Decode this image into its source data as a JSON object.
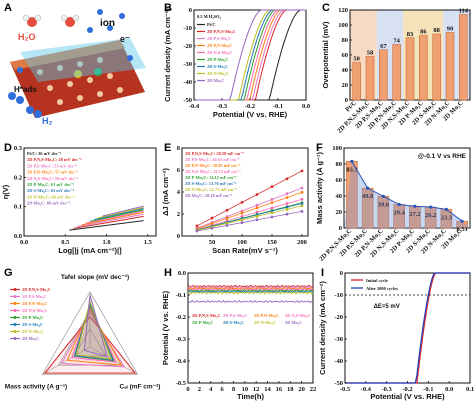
{
  "labels": {
    "A": "A",
    "B": "B",
    "C": "C",
    "D": "D",
    "E": "E",
    "F": "F",
    "G": "G",
    "H": "H",
    "I": "I"
  },
  "schematic": {
    "h2o": "H₂O",
    "ion": "ion",
    "electron": "e⁻",
    "hads": "H*ads",
    "h2": "H₂"
  },
  "chart_data": [
    {
      "panel": "B",
      "type": "line",
      "annotation": "0.5 M H₂SO₄",
      "xlabel": "Potential (V vs. RHE)",
      "ylabel": "Current density (mA cm⁻²)",
      "xlim": [
        -0.4,
        0.0
      ],
      "ylim": [
        -50,
        0
      ],
      "xticks": [
        "-0.4",
        "-0.3",
        "-0.2",
        "-0.1",
        "0.0"
      ],
      "yticks": [
        "0",
        "-10",
        "-20",
        "-30",
        "-40",
        "-50"
      ],
      "series": [
        {
          "name": "Pt/C",
          "color": "#222222",
          "onset": -0.02
        },
        {
          "name": "2D P,N,S-Mo₂C",
          "color": "#d62728",
          "onset": -0.07
        },
        {
          "name": "2D P,S-Mo₂C",
          "color": "#e377c2",
          "onset": -0.08
        },
        {
          "name": "2D P,N-Mo₂C",
          "color": "#ff7f0e",
          "onset": -0.09
        },
        {
          "name": "2D N,S-Mo₂C",
          "color": "#ff69b4",
          "onset": -0.1
        },
        {
          "name": "2D P-Mo₂C",
          "color": "#2ca02c",
          "onset": -0.11
        },
        {
          "name": "2D S-Mo₂C",
          "color": "#1f77b4",
          "onset": -0.12
        },
        {
          "name": "2D N-Mo₂C",
          "color": "#bcbd22",
          "onset": -0.13
        },
        {
          "name": "2D Mo₂C",
          "color": "#9467bd",
          "onset": -0.16
        }
      ]
    },
    {
      "panel": "C",
      "type": "bar",
      "ylabel": "Overpotential (mV)",
      "ylim": [
        0,
        120
      ],
      "yticks": [
        "0",
        "20",
        "40",
        "60",
        "80",
        "100",
        "120"
      ],
      "categories": [
        "Pt/C",
        "2D P,N,S-Mo₂C",
        "2D P,S-Mo₂C",
        "2D P,N-Mo₂C",
        "2D N,S-Mo₂C",
        "2D P-Mo₂C",
        "2D S-Mo₂C",
        "2D N-Mo₂C",
        "2D Mo₂C"
      ],
      "values": [
        50,
        58,
        67,
        74,
        83,
        86,
        88,
        90,
        114
      ],
      "value_labels": [
        "50",
        "58",
        "67",
        "74",
        "83",
        "86",
        "88",
        "90",
        "114"
      ]
    },
    {
      "panel": "D",
      "type": "line",
      "xlabel": "Log[|j (mA cm⁻²)|]",
      "ylabel": "η(V)",
      "xlim": [
        0.0,
        1.6
      ],
      "ylim": [
        0.0,
        0.3
      ],
      "xticks": [
        "0.0",
        "0.5",
        "1.0",
        "1.5"
      ],
      "yticks": [
        "0.0",
        "0.1",
        "0.2",
        "0.3"
      ],
      "series": [
        {
          "name": "Pt/C: 36 mV dec⁻¹",
          "color": "#222222",
          "slope": 36
        },
        {
          "name": "2D P,N,S-Mo₂C: 48 mV dec⁻¹",
          "color": "#d62728",
          "slope": 48
        },
        {
          "name": "2D P,S-Mo₂C: 53 mV dec⁻¹",
          "color": "#e377c2",
          "slope": 53
        },
        {
          "name": "2D P,N-Mo₂C: 57 mV dec⁻¹",
          "color": "#ff7f0e",
          "slope": 57
        },
        {
          "name": "2D N,S-Mo₂C: 59 mV dec⁻¹",
          "color": "#ff69b4",
          "slope": 59
        },
        {
          "name": "2D P-Mo₂C: 61 mV dec⁻¹",
          "color": "#2ca02c",
          "slope": 61
        },
        {
          "name": "2D S-Mo₂C: 63 mV dec⁻¹",
          "color": "#1f77b4",
          "slope": 63
        },
        {
          "name": "2D N-Mo₂C: 64 mV dec⁻¹",
          "color": "#bcbd22",
          "slope": 64
        },
        {
          "name": "2D Mo₂C: 68 mV dec⁻¹",
          "color": "#9467bd",
          "slope": 68
        }
      ]
    },
    {
      "panel": "E",
      "type": "scatter",
      "xlabel": "Scan Rate(mV s⁻¹)",
      "ylabel": "ΔJ (mA cm⁻²)",
      "xlim": [
        0,
        210
      ],
      "ylim": [
        0,
        8
      ],
      "xticks": [
        "50",
        "100",
        "150",
        "200"
      ],
      "yticks": [
        "0",
        "2",
        "4",
        "6",
        "8"
      ],
      "x": [
        25,
        50,
        75,
        100,
        125,
        150,
        175,
        200
      ],
      "series": [
        {
          "name": "2D P,N,S-Mo₂C: 28.58 mF cm⁻²",
          "color": "#d62728",
          "cdl": 28.58
        },
        {
          "name": "2D P,S-Mo₂C: 20.83 mF cm⁻²",
          "color": "#e377c2",
          "cdl": 20.83
        },
        {
          "name": "2D P,N-Mo₂C: 18.85 mF cm⁻²",
          "color": "#ff7f0e",
          "cdl": 18.85
        },
        {
          "name": "2D N,S-Mo₂C: 15.72 mF cm⁻²",
          "color": "#ff69b4",
          "cdl": 15.72
        },
        {
          "name": "2D P-Mo₂C: 14.12 mF cm⁻²",
          "color": "#2ca02c",
          "cdl": 14.12
        },
        {
          "name": "2D S-Mo₂C: 13.76 mF cm⁻²",
          "color": "#1f77b4",
          "cdl": 13.76
        },
        {
          "name": "2D N-Mo₂C: 12.71 mF cm⁻²",
          "color": "#bcbd22",
          "cdl": 12.71
        },
        {
          "name": "2D Mo₂C: 10.18 mF cm⁻²",
          "color": "#9467bd",
          "cdl": 10.18
        }
      ]
    },
    {
      "panel": "F",
      "type": "bar",
      "annotation": "@-0.1 V vs RHE",
      "ylabel": "Mass activity (A g⁻¹)",
      "ylim": [
        0,
        100
      ],
      "yticks": [
        "0",
        "20",
        "40",
        "60",
        "80",
        "100"
      ],
      "categories": [
        "2D P,N,S-Mo₂C",
        "2D P,S-Mo₂C",
        "2D P,N-Mo₂C",
        "2D N,S-Mo₂C",
        "2D P-Mo₂C",
        "2D S-Mo₂C",
        "2D N-Mo₂C",
        "2D Mo₂C"
      ],
      "values": [
        83.3,
        49.8,
        39.6,
        29.4,
        27.2,
        26.2,
        23.3,
        8.51
      ],
      "value_labels": [
        "83.3",
        "49.8",
        "39.6",
        "29.4",
        "27.2",
        "26.2",
        "23.3",
        "8.51"
      ]
    },
    {
      "panel": "G",
      "type": "radar",
      "axes": [
        "Tafel slope (mV dec⁻¹)",
        "Mass activity (A g⁻¹)",
        "Cₑₗ (mF cm⁻²)"
      ],
      "series": [
        {
          "name": "2D P,N,S-Mo₂C",
          "color": "#d62728",
          "values": [
            0.55,
            0.95,
            0.95
          ]
        },
        {
          "name": "2D P,S-Mo₂C",
          "color": "#e377c2",
          "values": [
            0.62,
            0.6,
            0.72
          ]
        },
        {
          "name": "2D P,N-Mo₂C",
          "color": "#ff7f0e",
          "values": [
            0.68,
            0.48,
            0.66
          ]
        },
        {
          "name": "2D N,S-Mo₂C",
          "color": "#ff69b4",
          "values": [
            0.72,
            0.38,
            0.55
          ]
        },
        {
          "name": "2D P-Mo₂C",
          "color": "#2ca02c",
          "values": [
            0.76,
            0.33,
            0.5
          ]
        },
        {
          "name": "2D S-Mo₂C",
          "color": "#1f77b4",
          "values": [
            0.8,
            0.32,
            0.48
          ]
        },
        {
          "name": "2D N-Mo₂C",
          "color": "#bcbd22",
          "values": [
            0.83,
            0.28,
            0.44
          ]
        },
        {
          "name": "2D Mo₂C",
          "color": "#9467bd",
          "values": [
            0.95,
            0.12,
            0.36
          ]
        }
      ]
    },
    {
      "panel": "H",
      "type": "line",
      "xlabel": "Time(h)",
      "ylabel": "Potential (V vs. RHE)",
      "xlim": [
        0,
        22
      ],
      "ylim": [
        -0.5,
        0.0
      ],
      "xticks": [
        "0",
        "2",
        "4",
        "6",
        "8",
        "10",
        "12",
        "14",
        "16",
        "18",
        "20",
        "22"
      ],
      "yticks": [
        "0.0",
        "-0.1",
        "-0.2",
        "-0.3",
        "-0.4",
        "-0.5"
      ],
      "series": [
        {
          "name": "2D P,N,S-Mo₂C",
          "color": "#d62728",
          "level": -0.06
        },
        {
          "name": "2D P,S-Mo₂C",
          "color": "#e377c2",
          "level": -0.065
        },
        {
          "name": "2D P,N-Mo₂C",
          "color": "#ff7f0e",
          "level": -0.07
        },
        {
          "name": "2D N,S-Mo₂C",
          "color": "#ff69b4",
          "level": -0.075
        },
        {
          "name": "2D P-Mo₂C",
          "color": "#2ca02c",
          "level": -0.08
        },
        {
          "name": "2D S-Mo₂C",
          "color": "#1f77b4",
          "level": -0.085
        },
        {
          "name": "2D N-Mo₂C",
          "color": "#bcbd22",
          "level": -0.09
        },
        {
          "name": "2D Mo₂C",
          "color": "#9467bd",
          "level": -0.13
        }
      ]
    },
    {
      "panel": "I",
      "type": "line",
      "xlabel": "Potential (V vs. RHE)",
      "ylabel": "Current density (mA cm⁻²)",
      "xlim": [
        -0.5,
        0.1
      ],
      "ylim": [
        -50,
        0
      ],
      "xticks": [
        "-0.5",
        "-0.4",
        "-0.3",
        "-0.2",
        "-0.1",
        "0.0",
        "0.1"
      ],
      "yticks": [
        "0",
        "-10",
        "-20",
        "-30",
        "-40",
        "-50"
      ],
      "annotation": "ΔE=5 mV",
      "series": [
        {
          "name": "Initial cycle",
          "color": "#d62728",
          "onset": -0.065
        },
        {
          "name": "After 3000 cycles",
          "color": "#1f3fbf",
          "onset": -0.07
        }
      ]
    }
  ]
}
